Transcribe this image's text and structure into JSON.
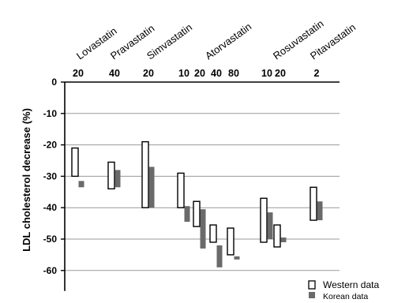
{
  "chart_data": {
    "type": "floating-bar",
    "ylabel": "LDL cholesterol  decrease (%)",
    "ylim": [
      -65,
      0
    ],
    "yticks": [
      0,
      -10,
      -20,
      -30,
      -40,
      -50,
      -60
    ],
    "grid": true,
    "legend": {
      "position": "bottom-right",
      "entries": [
        "Western data",
        "Korean data"
      ]
    },
    "drugs": [
      {
        "name": "Lovastatin",
        "doses": [
          "20"
        ]
      },
      {
        "name": "Pravastatin",
        "doses": [
          "40"
        ]
      },
      {
        "name": "Simvastatin",
        "doses": [
          "20"
        ]
      },
      {
        "name": "Atorvastatin",
        "doses": [
          "10",
          "20",
          "40",
          "80"
        ]
      },
      {
        "name": "Rosuvastatin",
        "doses": [
          "10",
          "20"
        ]
      },
      {
        "name": "Pitavastatin",
        "doses": [
          "2"
        ]
      }
    ],
    "series": [
      {
        "name": "Western data",
        "color": "#ffffff",
        "stroke": "#000000",
        "ranges": [
          {
            "drug": "Lovastatin",
            "dose": "20",
            "low": -30,
            "high": -21
          },
          {
            "drug": "Pravastatin",
            "dose": "40",
            "low": -34,
            "high": -25.5
          },
          {
            "drug": "Simvastatin",
            "dose": "20",
            "low": -40,
            "high": -19
          },
          {
            "drug": "Atorvastatin",
            "dose": "10",
            "low": -40,
            "high": -29
          },
          {
            "drug": "Atorvastatin",
            "dose": "20",
            "low": -46,
            "high": -38
          },
          {
            "drug": "Atorvastatin",
            "dose": "40",
            "low": -51,
            "high": -45.5
          },
          {
            "drug": "Atorvastatin",
            "dose": "80",
            "low": -55,
            "high": -46.5
          },
          {
            "drug": "Rosuvastatin",
            "dose": "10",
            "low": -51,
            "high": -37
          },
          {
            "drug": "Rosuvastatin",
            "dose": "20",
            "low": -52.5,
            "high": -45.5
          },
          {
            "drug": "Pitavastatin",
            "dose": "2",
            "low": -44,
            "high": -33.5
          }
        ]
      },
      {
        "name": "Korean data",
        "color": "#6a6a6a",
        "ranges": [
          {
            "drug": "Lovastatin",
            "dose": "20",
            "low": -33.5,
            "high": -31.5
          },
          {
            "drug": "Pravastatin",
            "dose": "40",
            "low": -33.5,
            "high": -28
          },
          {
            "drug": "Simvastatin",
            "dose": "20",
            "low": -40,
            "high": -27
          },
          {
            "drug": "Atorvastatin",
            "dose": "10",
            "low": -44.5,
            "high": -39.5
          },
          {
            "drug": "Atorvastatin",
            "dose": "20",
            "low": -53,
            "high": -40.5
          },
          {
            "drug": "Atorvastatin",
            "dose": "40",
            "low": -59,
            "high": -52
          },
          {
            "drug": "Atorvastatin",
            "dose": "80",
            "low": -56.5,
            "high": -55.5
          },
          {
            "drug": "Rosuvastatin",
            "dose": "10",
            "low": -50,
            "high": -41.5
          },
          {
            "drug": "Rosuvastatin",
            "dose": "20",
            "low": -51,
            "high": -49.5
          },
          {
            "drug": "Pitavastatin",
            "dose": "2",
            "low": -44,
            "high": -38
          }
        ]
      }
    ]
  }
}
